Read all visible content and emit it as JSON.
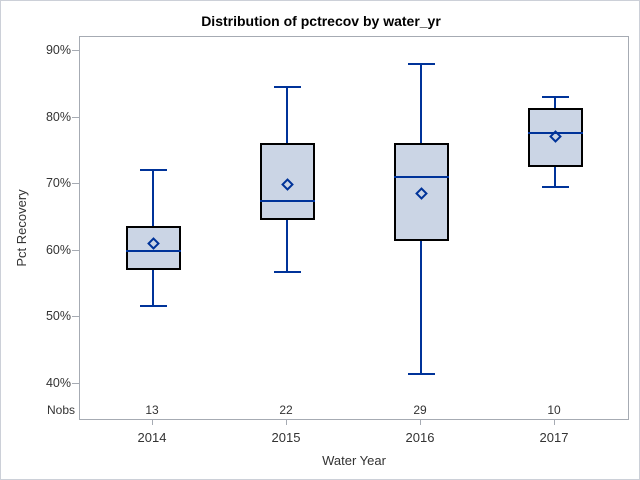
{
  "chart_data": {
    "type": "box",
    "title": "Distribution of pctrecov by water_yr",
    "xlabel": "Water Year",
    "ylabel": "Pct Recovery",
    "categories": [
      "2014",
      "2015",
      "2016",
      "2017"
    ],
    "nobs_label": "Nobs",
    "nobs": [
      13,
      22,
      29,
      10
    ],
    "series": [
      {
        "category": "2014",
        "n": 13,
        "whisker_low": 51.7,
        "q1": 57.0,
        "median": 60.0,
        "mean": 61.0,
        "q3": 63.7,
        "whisker_high": 72.1
      },
      {
        "category": "2015",
        "n": 22,
        "whisker_low": 56.7,
        "q1": 64.6,
        "median": 67.4,
        "mean": 69.9,
        "q3": 76.2,
        "whisker_high": 84.6
      },
      {
        "category": "2016",
        "n": 29,
        "whisker_low": 41.5,
        "q1": 61.5,
        "median": 71.0,
        "mean": 68.5,
        "q3": 76.1,
        "whisker_high": 88.1
      },
      {
        "category": "2017",
        "n": 10,
        "whisker_low": 69.5,
        "q1": 72.5,
        "median": 77.7,
        "mean": 77.1,
        "q3": 81.5,
        "whisker_high": 83.1
      }
    ],
    "y_ticks": [
      {
        "value": 90,
        "label": "90%"
      },
      {
        "value": 80,
        "label": "80%"
      },
      {
        "value": 70,
        "label": "70%"
      },
      {
        "value": 60,
        "label": "60%"
      },
      {
        "value": 50,
        "label": "50%"
      },
      {
        "value": 40,
        "label": "40%"
      }
    ],
    "ylim": [
      34.3,
      92.1
    ],
    "grid": false,
    "legend": false,
    "mean_marker": "diamond"
  },
  "colors": {
    "box_fill": "#cbd5e5",
    "box_border": "#000000",
    "line_blue": "#003399",
    "axis_gray": "#a6abb3",
    "text": "#333333",
    "title_text": "#000000",
    "background": "#ffffff",
    "figure_border": "#ccd0d8"
  }
}
